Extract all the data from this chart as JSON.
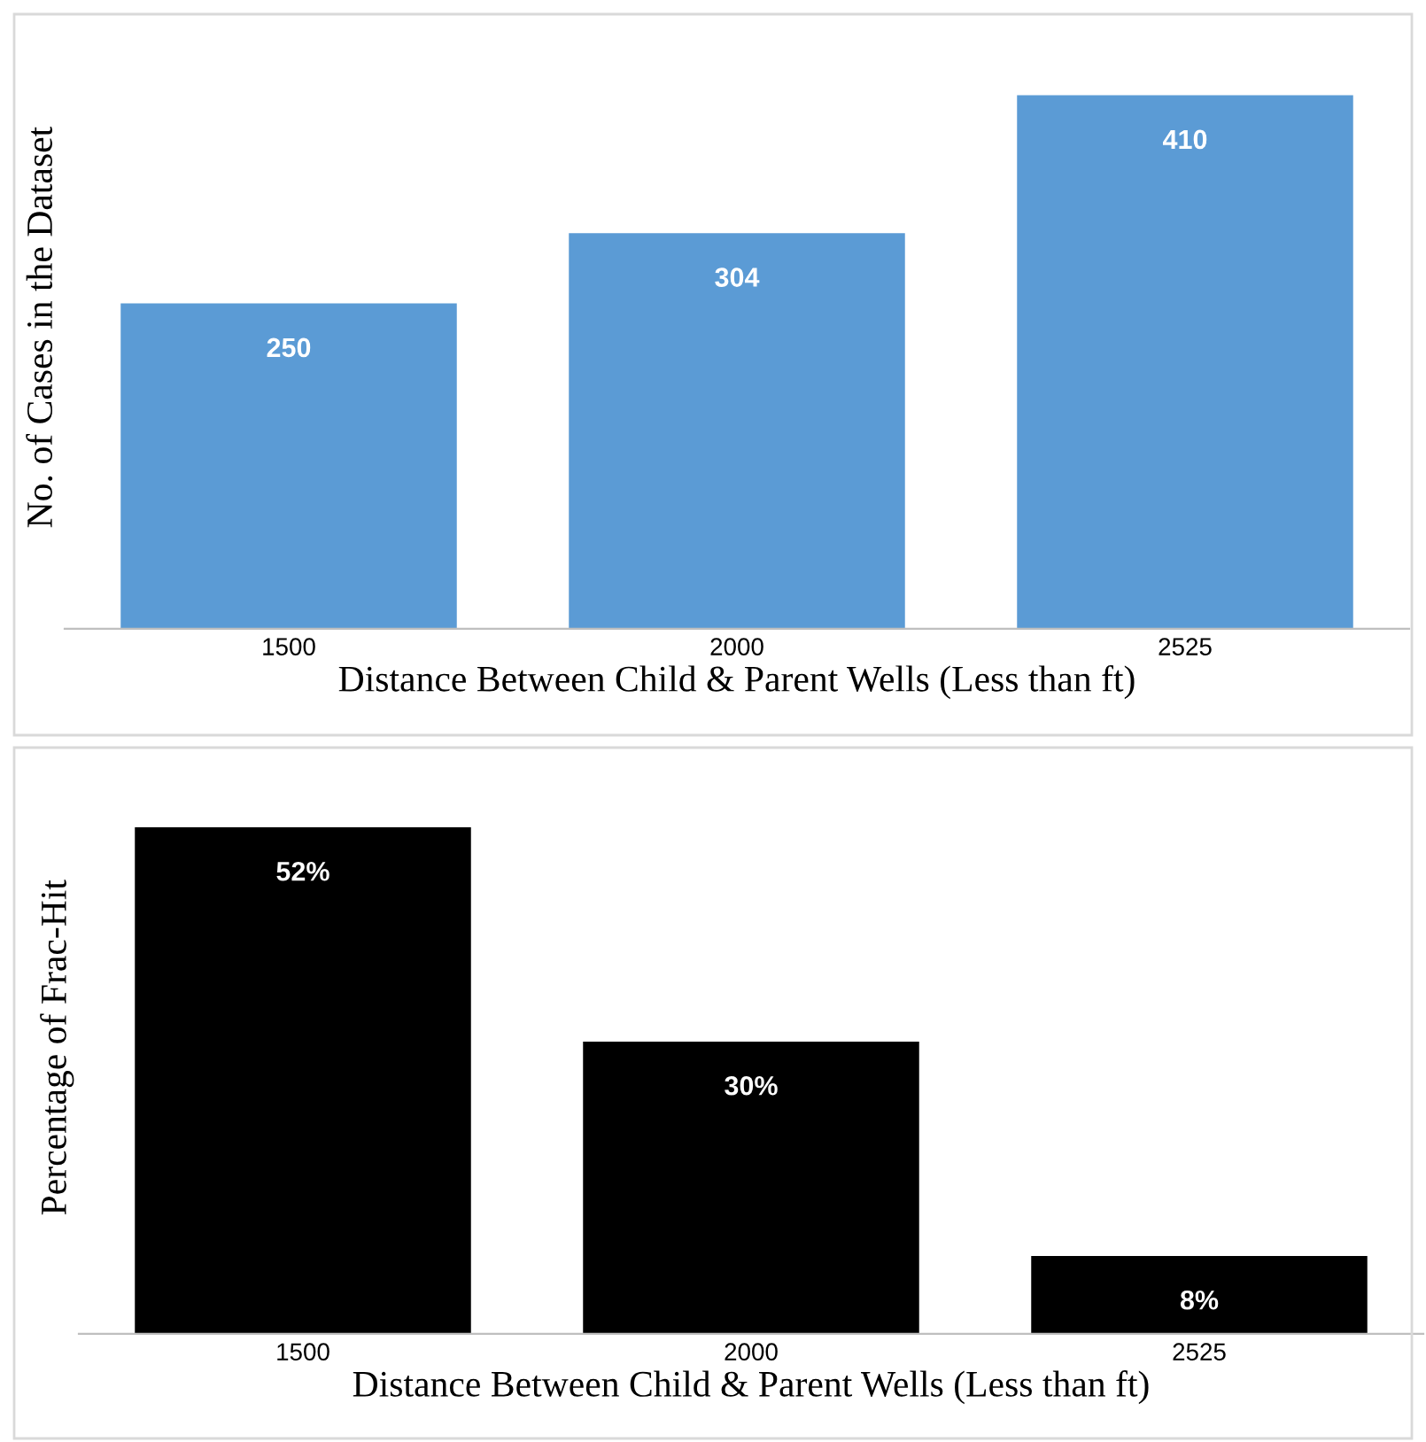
{
  "chart_data": [
    {
      "type": "bar",
      "categories": [
        "1500",
        "2000",
        "2525"
      ],
      "values": [
        250,
        304,
        410
      ],
      "color": "#5b9bd5",
      "xlabel": "Distance Between Child & Parent Wells (Less than ft)",
      "ylabel": "No. of Cases in the Dataset",
      "data_labels": true,
      "tick_labels": "x",
      "grid": false,
      "legend": false
    },
    {
      "type": "bar",
      "categories": [
        "1500",
        "2000",
        "2525"
      ],
      "values": [
        52,
        30,
        8
      ],
      "value_labels": [
        "52%",
        "30%",
        "8%"
      ],
      "color": "#000000",
      "xlabel": "Distance Between Child & Parent Wells (Less than ft)",
      "ylabel": "Percentage of Frac-Hit",
      "tick_labels": "x",
      "grid": false,
      "legend": false
    }
  ]
}
